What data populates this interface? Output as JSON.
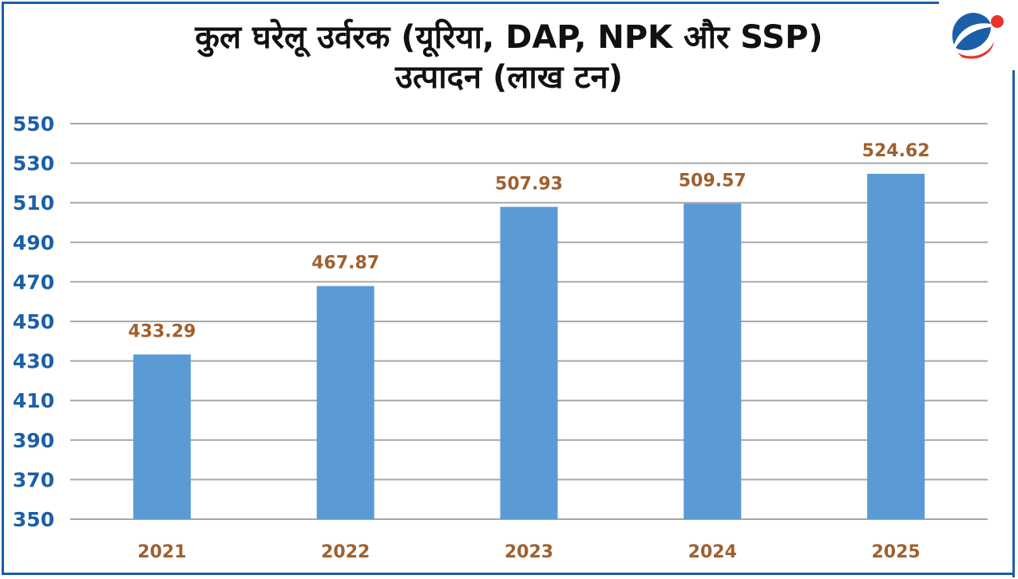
{
  "chart_data": {
    "type": "bar",
    "title": "कुल घरेलू उर्वरक (यूरिया, DAP, NPK और SSP) उत्पादन (लाख टन)",
    "title_lines": [
      "कुल घरेलू उर्वरक (यूरिया, DAP, NPK और SSP)",
      "उत्पादन (लाख टन)"
    ],
    "categories": [
      "2021",
      "2022",
      "2023",
      "2024",
      "2025"
    ],
    "values": [
      433.29,
      467.87,
      507.93,
      509.57,
      524.62
    ],
    "data_labels": [
      "433.29",
      "467.87",
      "507.93",
      "509.57",
      "524.62"
    ],
    "xlabel": "",
    "ylabel": "",
    "ylim": [
      350,
      550
    ],
    "yticks": [
      350,
      370,
      390,
      410,
      430,
      450,
      470,
      490,
      510,
      530,
      550
    ],
    "grid": true,
    "legend": "none",
    "colors": {
      "bar": "#5b9bd5",
      "data_label": "#a0602e",
      "tick_label": "#1b5fa8",
      "grid": "#a6a6a6",
      "frame": "#1b5fa8"
    }
  }
}
